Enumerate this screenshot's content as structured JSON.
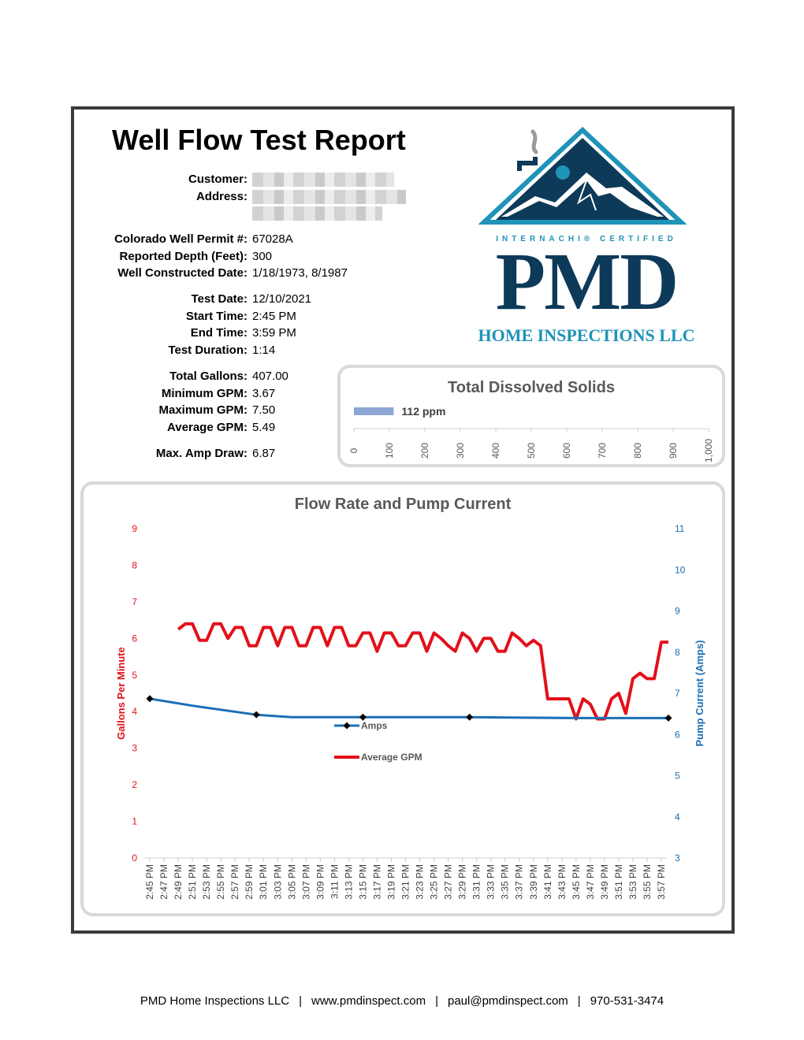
{
  "report": {
    "title": "Well Flow Test Report"
  },
  "customer": {
    "customer_label": "Customer:",
    "address_label": "Address:"
  },
  "permit": [
    {
      "label": "Colorado Well Permit #:",
      "value": "67028A"
    },
    {
      "label": "Reported Depth (Feet):",
      "value": "300"
    },
    {
      "label": "Well Constructed Date:",
      "value": "1/18/1973, 8/1987"
    }
  ],
  "test": [
    {
      "label": "Test Date:",
      "value": "12/10/2021"
    },
    {
      "label": "Start Time:",
      "value": "2:45 PM"
    },
    {
      "label": "End Time:",
      "value": "3:59 PM"
    },
    {
      "label": "Test Duration:",
      "value": "1:14"
    }
  ],
  "totals": [
    {
      "label": "Total Gallons:",
      "value": "407.00"
    },
    {
      "label": "Minimum GPM:",
      "value": "3.67"
    },
    {
      "label": "Maximum GPM:",
      "value": "7.50"
    },
    {
      "label": "Average GPM:",
      "value": "5.49"
    }
  ],
  "amp": {
    "label": "Max. Amp Draw:",
    "value": "6.87"
  },
  "logo": {
    "certified": "INTERNACHI® CERTIFIED",
    "brand": "PMD",
    "company": "HOME INSPECTIONS LLC",
    "navy": "#0d3a58",
    "teal": "#1f93b8"
  },
  "footer": {
    "company": "PMD Home Inspections LLC",
    "website": "www.pmdinspect.com",
    "email": "paul@pmdinspect.com",
    "phone": "970-531-3474",
    "separator": "|"
  },
  "chart_data": [
    {
      "type": "bar",
      "title": "Total Dissolved Solids",
      "orientation": "horizontal",
      "categories": [
        ""
      ],
      "values": [
        112
      ],
      "data_label": "112 ppm",
      "xlim": [
        0,
        1000
      ],
      "ticks": [
        "0",
        "100",
        "200",
        "300",
        "400",
        "500",
        "600",
        "700",
        "800",
        "900",
        "1,000"
      ],
      "bar_color": "#8fa7d4",
      "grid": false
    },
    {
      "type": "line",
      "title": "Flow Rate and Pump Current",
      "categories": [
        "2:45 PM",
        "2:47 PM",
        "2:49 PM",
        "2:51 PM",
        "2:53 PM",
        "2:55 PM",
        "2:57 PM",
        "2:59 PM",
        "3:01 PM",
        "3:03 PM",
        "3:05 PM",
        "3:07 PM",
        "3:09 PM",
        "3:11 PM",
        "3:13 PM",
        "3:15 PM",
        "3:17 PM",
        "3:19 PM",
        "3:21 PM",
        "3:23 PM",
        "3:25 PM",
        "3:27 PM",
        "3:29 PM",
        "3:31 PM",
        "3:33 PM",
        "3:35 PM",
        "3:37 PM",
        "3:39 PM",
        "3:41 PM",
        "3:43 PM",
        "3:45 PM",
        "3:47 PM",
        "3:49 PM",
        "3:51 PM",
        "3:53 PM",
        "3:55 PM",
        "3:57 PM"
      ],
      "y_left": {
        "label": "Gallons Per Minute",
        "range": [
          0,
          9
        ],
        "ticks": [
          "0",
          "1",
          "2",
          "3",
          "4",
          "5",
          "6",
          "7",
          "8",
          "9"
        ],
        "color": "#e3101a"
      },
      "y_right": {
        "label": "Pump Current (Amps)",
        "range": [
          3,
          11
        ],
        "ticks": [
          "3",
          "4",
          "5",
          "6",
          "7",
          "8",
          "9",
          "10",
          "11"
        ],
        "color": "#1a6fb5"
      },
      "series": [
        {
          "name": "Average GPM",
          "axis": "left",
          "color": "#e3101a",
          "x": [
            2.0,
            2.5,
            3.0,
            3.5,
            4.0,
            4.5,
            5.0,
            5.5,
            6.0,
            6.5,
            7.0,
            7.5,
            8.0,
            8.5,
            9.0,
            9.5,
            10.0,
            10.5,
            11.0,
            11.5,
            12.0,
            12.5,
            13.0,
            13.5,
            14.0,
            14.5,
            15.0,
            15.5,
            16.0,
            16.5,
            17.0,
            17.5,
            18.0,
            18.5,
            19.0,
            19.5,
            20.0,
            20.5,
            21.0,
            21.5,
            22.0,
            22.5,
            23.0,
            23.5,
            24.0,
            24.5,
            25.0,
            25.5,
            26.0,
            26.5,
            27.0,
            27.5,
            28.0,
            28.5,
            29.0,
            29.5,
            30.0,
            30.5,
            31.0,
            31.5,
            32.0,
            32.5,
            33.0,
            33.5,
            34.0,
            34.5,
            35.0,
            35.5,
            36.0,
            36.5
          ],
          "values": [
            6.25,
            6.4,
            6.4,
            5.95,
            5.95,
            6.4,
            6.4,
            6.0,
            6.3,
            6.3,
            5.8,
            5.8,
            6.3,
            6.3,
            5.8,
            6.3,
            6.3,
            5.8,
            5.8,
            6.3,
            6.3,
            5.8,
            6.3,
            6.3,
            5.8,
            5.8,
            6.15,
            6.15,
            5.65,
            6.15,
            6.15,
            5.8,
            5.8,
            6.15,
            6.15,
            5.65,
            6.15,
            6.0,
            5.8,
            5.65,
            6.15,
            6.0,
            5.65,
            6.0,
            6.0,
            5.65,
            5.65,
            6.15,
            6.0,
            5.8,
            5.95,
            5.8,
            4.35,
            4.35,
            4.35,
            4.35,
            3.8,
            4.35,
            4.2,
            3.8,
            3.8,
            4.35,
            4.5,
            3.95,
            4.9,
            5.05,
            4.9,
            4.9,
            5.9,
            5.9
          ]
        },
        {
          "name": "Amps",
          "axis": "right",
          "color": "#1a6fb5",
          "x": [
            0,
            3,
            7.5,
            10,
            15,
            22.5,
            30,
            36.5
          ],
          "values": [
            6.87,
            6.7,
            6.48,
            6.42,
            6.42,
            6.42,
            6.4,
            6.4
          ],
          "markers": [
            0,
            7.5,
            15,
            22.5,
            36.5
          ]
        }
      ],
      "legend": [
        "Amps",
        "Average GPM"
      ]
    }
  ]
}
